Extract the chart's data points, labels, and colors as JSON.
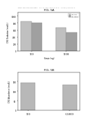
{
  "fig5a": {
    "title": "FIG. 5A",
    "groups": [
      "100",
      "1000"
    ],
    "series1_label": "WT M1",
    "series2_label": "MC-1000",
    "series1_values": [
      850,
      680
    ],
    "series2_values": [
      800,
      530
    ],
    "ylabel": "CF4 Oxidation (mol/L)",
    "xlabel": "Strain (ng)",
    "ylim": [
      0,
      1100
    ],
    "yticks": [
      0,
      200,
      400,
      600,
      800,
      1000
    ],
    "bar_color1": "#c0c0c0",
    "bar_color2": "#a0a0a0",
    "legend_labels": [
      "WT M1",
      "MC-1000"
    ]
  },
  "fig5b": {
    "title": "FIG. 5B",
    "categories": [
      "100",
      "C-1000"
    ],
    "values": [
      145,
      135
    ],
    "ylabel": "CF4 Abundance (mol/L)",
    "xlabel": "",
    "ylim": [
      0,
      200
    ],
    "yticks": [
      0,
      50,
      100,
      150
    ],
    "bar_color": "#b8b8b8"
  },
  "header_text": "Patent Application Publication    Dec. 14, 2010  Sheet 11 of 11    US 2010/0317994 A1",
  "bg_color": "#ffffff",
  "text_color": "#333333"
}
